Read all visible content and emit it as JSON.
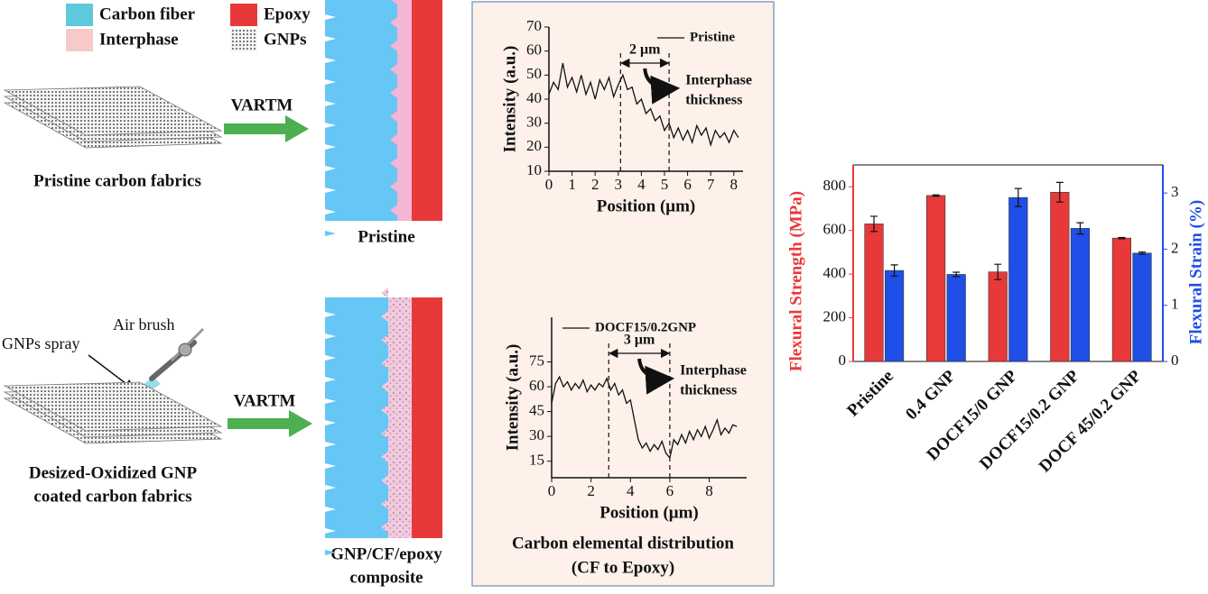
{
  "diagram": {
    "legend": [
      "Carbon fiber",
      "Interphase",
      "Epoxy",
      "GNPs"
    ],
    "process_label": [
      "VARTM",
      "VARTM"
    ],
    "top_fabric": "Pristine carbon fabrics",
    "top_composite": "Pristine",
    "spray_label": "GNPs spray",
    "brush_label": "Air brush",
    "bottom_fabric": [
      "Desized-Oxidized GNP",
      "coated carbon fabrics"
    ],
    "bottom_composite": [
      "GNP/CF/epoxy",
      "composite"
    ],
    "panel_caption": [
      "Carbon elemental distribution",
      "(CF to Epoxy)"
    ]
  },
  "chart_data": [
    {
      "type": "line",
      "x": [
        0,
        0.2,
        0.4,
        0.6,
        0.8,
        1.0,
        1.2,
        1.4,
        1.6,
        1.8,
        2.0,
        2.2,
        2.4,
        2.6,
        2.8,
        3.0,
        3.2,
        3.4,
        3.6,
        3.8,
        4.0,
        4.2,
        4.4,
        4.6,
        4.8,
        5.0,
        5.2,
        5.4,
        5.6,
        5.8,
        6.0,
        6.2,
        6.4,
        6.6,
        6.8,
        7.0,
        7.2,
        7.4,
        7.6,
        7.8,
        8.0,
        8.2
      ],
      "series": [
        {
          "name": "Pristine",
          "color": "#111111",
          "values": [
            42,
            47,
            44,
            55,
            45,
            49,
            43,
            50,
            42,
            47,
            40,
            48,
            44,
            49,
            41,
            46,
            50,
            44,
            45,
            38,
            40,
            34,
            36,
            31,
            33,
            27,
            30,
            24,
            28,
            23,
            27,
            22,
            29,
            25,
            28,
            21,
            27,
            24,
            26,
            22,
            27,
            24
          ]
        }
      ],
      "xlim": [
        0,
        8.4
      ],
      "ylim": [
        10,
        70
      ],
      "xticks": [
        0,
        1,
        2,
        3,
        4,
        5,
        6,
        7,
        8
      ],
      "yticks": [
        10,
        20,
        30,
        40,
        50,
        60,
        70
      ],
      "xlabel": "Position (μm)",
      "ylabel": "Intensity (a.u.)",
      "vlines": [
        3.1,
        5.2
      ],
      "span_label": "2 μm",
      "annotation": [
        "Interphase",
        "thickness"
      ],
      "legend": "upper right"
    },
    {
      "type": "line",
      "x": [
        0,
        0.2,
        0.4,
        0.6,
        0.8,
        1.0,
        1.2,
        1.4,
        1.6,
        1.8,
        2.0,
        2.2,
        2.4,
        2.6,
        2.8,
        3.0,
        3.2,
        3.4,
        3.6,
        3.8,
        4.0,
        4.2,
        4.4,
        4.6,
        4.8,
        5.0,
        5.2,
        5.4,
        5.6,
        5.8,
        6.0,
        6.2,
        6.4,
        6.6,
        6.8,
        7.0,
        7.2,
        7.4,
        7.6,
        7.8,
        8.0,
        8.2,
        8.4,
        8.6,
        8.8,
        9.0,
        9.2,
        9.4
      ],
      "series": [
        {
          "name": "DOCF15/0.2GNP",
          "color": "#111111",
          "values": [
            50,
            62,
            66,
            60,
            63,
            58,
            62,
            59,
            64,
            57,
            61,
            58,
            62,
            60,
            65,
            58,
            62,
            55,
            58,
            50,
            52,
            40,
            28,
            23,
            26,
            21,
            25,
            22,
            27,
            20,
            17,
            28,
            25,
            31,
            26,
            33,
            28,
            34,
            30,
            36,
            29,
            34,
            40,
            31,
            35,
            32,
            37,
            36
          ]
        }
      ],
      "xlim": [
        0,
        9.9
      ],
      "ylim": [
        5,
        102
      ],
      "xticks": [
        0,
        2,
        4,
        6,
        8
      ],
      "yticks": [
        15,
        30,
        45,
        60,
        75
      ],
      "xlabel": "Position (μm)",
      "ylabel": "Intensity (a.u.)",
      "vlines": [
        2.9,
        6.0
      ],
      "span_label": "3 μm",
      "annotation": [
        "Interphase",
        "thickness"
      ],
      "legend": "upper left"
    },
    {
      "type": "bar",
      "categories": [
        "Pristine",
        "0.4 GNP",
        "DOCF15/0 GNP",
        "DOCF15/0.2 GNP",
        "DOCF 45/0.2 GNP"
      ],
      "series": [
        {
          "color": "#e8393a",
          "values": [
            630,
            760,
            410,
            775,
            565
          ],
          "errors": [
            35,
            3,
            35,
            45,
            3
          ]
        },
        {
          "color": "#1f4fe6",
          "values": [
            1.62,
            1.55,
            2.92,
            2.37,
            1.93
          ],
          "errors": [
            0.1,
            0.04,
            0.16,
            0.1,
            0.02
          ],
          "axis": "y2"
        }
      ],
      "ylabel": "Flexural Strength (MPa)",
      "y2label": "Flexural Strain (%)",
      "ylim": [
        0,
        900
      ],
      "yticks": [
        0,
        200,
        400,
        600,
        800
      ],
      "y2lim": [
        0,
        3.5
      ],
      "y2ticks": [
        0,
        1,
        2,
        3
      ]
    }
  ]
}
